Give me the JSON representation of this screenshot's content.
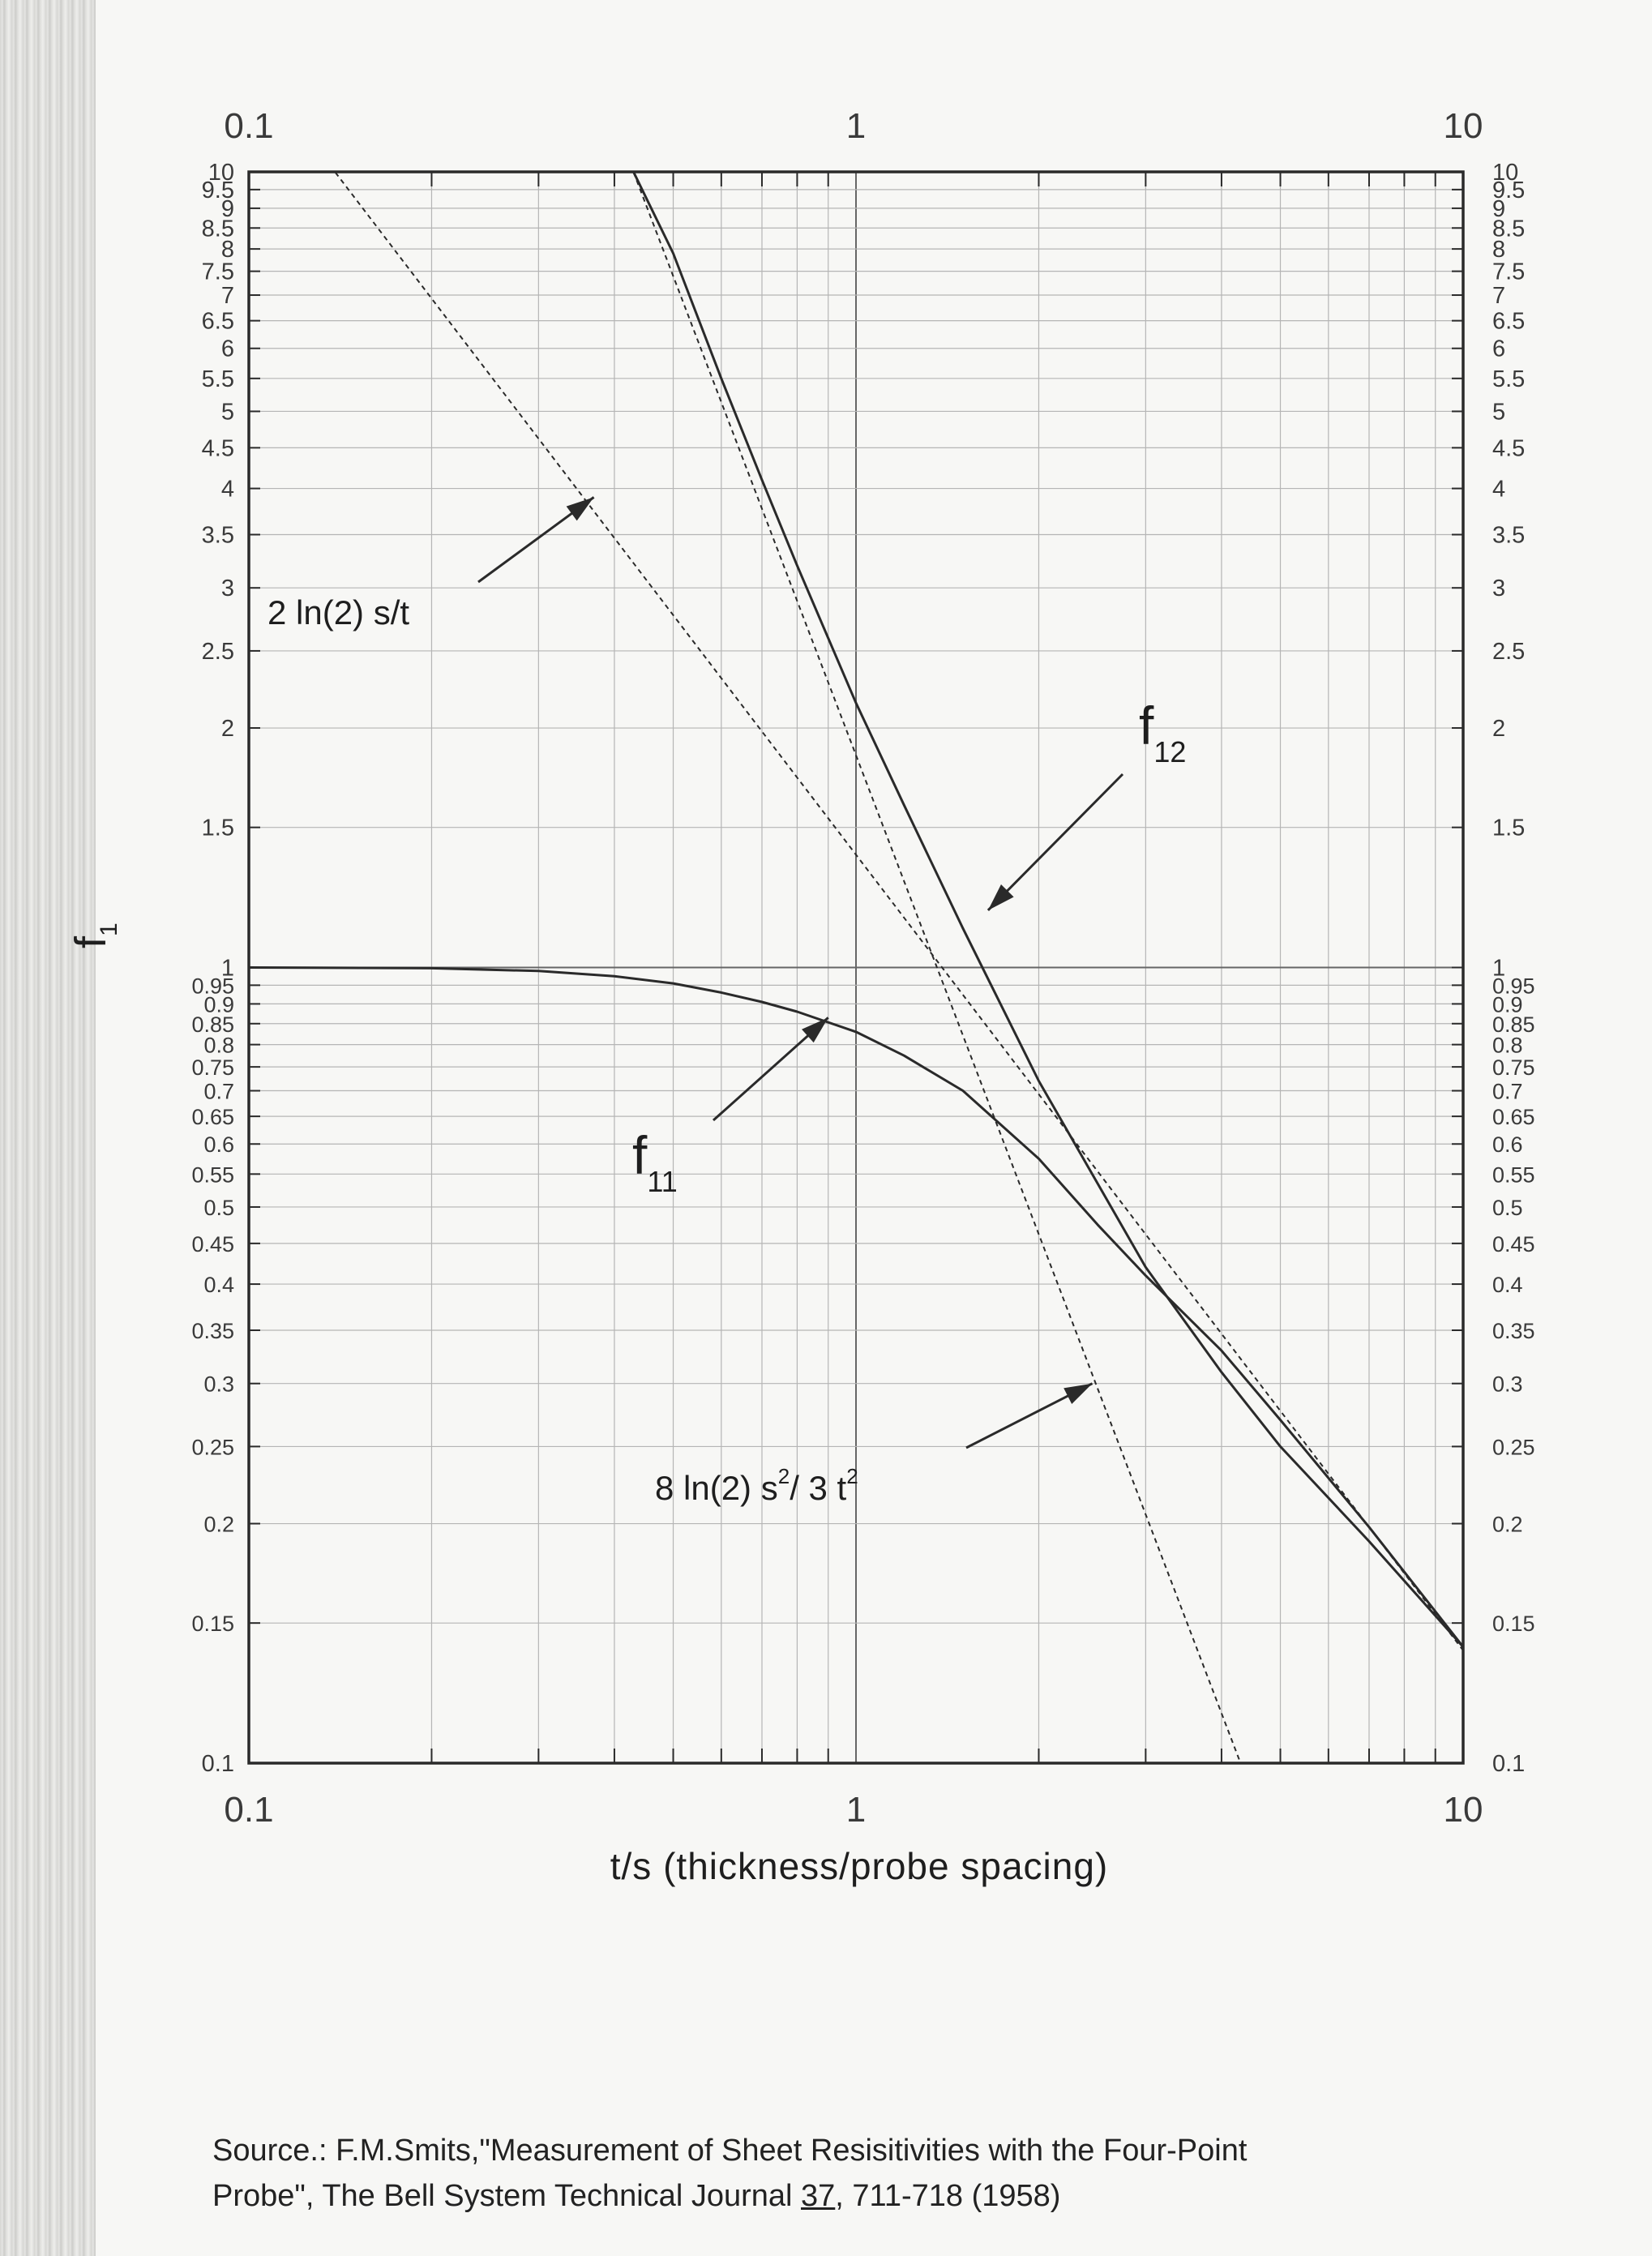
{
  "chart_data": {
    "type": "line",
    "xscale": "log",
    "yscale": "log",
    "xlim": [
      0.1,
      10
    ],
    "ylim": [
      0.1,
      10
    ],
    "xlabel": "t/s  (thickness/probe spacing)",
    "ylabel": "f",
    "ylabel_sub": "1",
    "grid": true,
    "x_major_ticks": [
      "0.1",
      "1",
      "10"
    ],
    "y_ticks": [
      "10",
      "9.5",
      "9",
      "8.5",
      "8",
      "7.5",
      "7",
      "6.5",
      "6",
      "5.5",
      "5",
      "4.5",
      "4",
      "3.5",
      "3",
      "2.5",
      "2",
      "1.5",
      "1",
      "0.95",
      "0.9",
      "0.85",
      "0.8",
      "0.75",
      "0.7",
      "0.65",
      "0.6",
      "0.55",
      "0.5",
      "0.45",
      "0.4",
      "0.35",
      "0.3",
      "0.25",
      "0.2",
      "0.15",
      "0.1"
    ],
    "series": [
      {
        "name": "f12",
        "style": "solid",
        "x": [
          0.43,
          0.5,
          0.6,
          0.7,
          0.8,
          1.0,
          1.2,
          1.5,
          2.0,
          3.0,
          4.0,
          5.0,
          7.0,
          10.0
        ],
        "y": [
          10.0,
          7.9,
          5.5,
          4.1,
          3.2,
          2.15,
          1.6,
          1.12,
          0.72,
          0.42,
          0.31,
          0.25,
          0.19,
          0.14
        ]
      },
      {
        "name": "f11",
        "style": "solid",
        "x": [
          0.1,
          0.2,
          0.3,
          0.4,
          0.5,
          0.6,
          0.7,
          0.8,
          1.0,
          1.2,
          1.5,
          2.0,
          2.5,
          3.0,
          4.0,
          5.0,
          7.0,
          10.0
        ],
        "y": [
          1.0,
          0.998,
          0.99,
          0.975,
          0.955,
          0.93,
          0.905,
          0.88,
          0.83,
          0.775,
          0.7,
          0.575,
          0.475,
          0.41,
          0.33,
          0.27,
          0.198,
          0.14
        ]
      },
      {
        "name": "2 ln(2) s/t",
        "style": "dashed",
        "x": [
          0.1,
          10.0
        ],
        "y": [
          13.863,
          0.1386
        ]
      },
      {
        "name": "8 ln(2) s²/ 3 t²",
        "style": "dashed",
        "x": [
          0.1,
          10.0
        ],
        "y": [
          184.84,
          0.018484
        ]
      }
    ],
    "annotations": [
      {
        "label": "2 ln(2) s/t"
      },
      {
        "label": "f",
        "sub": "12"
      },
      {
        "label": "f",
        "sub": "11"
      },
      {
        "label": "8 ln(2) s",
        "sup": "2",
        "rest": "/ 3 t",
        "sup2": "2"
      }
    ]
  },
  "source": {
    "prefix": "Source.:   F.M.Smits,\"Measurement of Sheet Resisitivities with the Four-Point",
    "line2_a": "Probe\", The Bell System Technical Journal ",
    "volume": "37",
    "line2_b": ", 711-718 (1958)"
  },
  "colors": {
    "ink": "#2a2a2a",
    "grid": "#b5b5b5",
    "paper": "#f7f7f5"
  }
}
